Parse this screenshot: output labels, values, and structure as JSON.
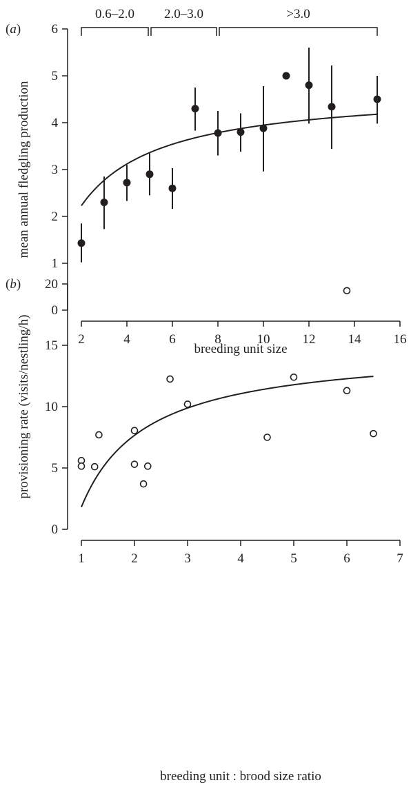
{
  "chart_data": [
    {
      "type": "scatter",
      "panel_label": "a",
      "xlabel": "breeding unit size",
      "ylabel": "mean annual fledgling production",
      "xlim": [
        2,
        16
      ],
      "ylim": [
        0,
        6
      ],
      "xticks": [
        2,
        4,
        6,
        8,
        10,
        12,
        14,
        16
      ],
      "yticks": [
        0,
        1,
        2,
        3,
        4,
        5,
        6
      ],
      "grid": false,
      "points": [
        {
          "x": 2,
          "y": 1.43,
          "lo": 1.02,
          "hi": 1.85
        },
        {
          "x": 3,
          "y": 2.3,
          "lo": 1.73,
          "hi": 2.85
        },
        {
          "x": 4,
          "y": 2.72,
          "lo": 2.33,
          "hi": 3.1
        },
        {
          "x": 5,
          "y": 2.9,
          "lo": 2.45,
          "hi": 3.35
        },
        {
          "x": 6,
          "y": 2.6,
          "lo": 2.16,
          "hi": 3.03
        },
        {
          "x": 7,
          "y": 4.3,
          "lo": 3.83,
          "hi": 4.75
        },
        {
          "x": 8,
          "y": 3.78,
          "lo": 3.3,
          "hi": 4.25
        },
        {
          "x": 9,
          "y": 3.8,
          "lo": 3.38,
          "hi": 4.2
        },
        {
          "x": 10,
          "y": 3.88,
          "lo": 2.96,
          "hi": 4.78
        },
        {
          "x": 11,
          "y": 5.0,
          "lo": 5.0,
          "hi": 5.0
        },
        {
          "x": 12,
          "y": 4.8,
          "lo": 3.98,
          "hi": 5.6
        },
        {
          "x": 13,
          "y": 4.34,
          "lo": 3.44,
          "hi": 5.22
        },
        {
          "x": 15,
          "y": 4.5,
          "lo": 3.98,
          "hi": 5.0
        }
      ],
      "fit_curve": {
        "x_range": [
          2,
          15
        ],
        "asymptote": 4.72,
        "half_saturation": 1.9,
        "x_offset": 0.3
      },
      "brackets": [
        {
          "label": "0.6–2.0",
          "x_start": 2,
          "x_end": 5
        },
        {
          "label": "2.0–3.0",
          "x_start": 5,
          "x_end": 8
        },
        {
          "label": ">3.0",
          "x_start": 8,
          "x_end": 15
        }
      ]
    },
    {
      "type": "scatter",
      "panel_label": "b",
      "xlabel": "breeding unit : brood size ratio",
      "ylabel": "provisioning rate (visits/nestling/h)",
      "xlim": [
        1,
        7
      ],
      "ylim": [
        0,
        20
      ],
      "xticks": [
        1,
        2,
        3,
        4,
        5,
        6,
        7
      ],
      "yticks": [
        0,
        5,
        10,
        15,
        20
      ],
      "grid": false,
      "points": [
        {
          "x": 1.0,
          "y": 5.6
        },
        {
          "x": 1.0,
          "y": 5.15
        },
        {
          "x": 1.25,
          "y": 5.1
        },
        {
          "x": 1.33,
          "y": 7.7
        },
        {
          "x": 2.0,
          "y": 8.05
        },
        {
          "x": 2.0,
          "y": 5.3
        },
        {
          "x": 2.17,
          "y": 3.7
        },
        {
          "x": 2.25,
          "y": 5.15
        },
        {
          "x": 2.67,
          "y": 12.25
        },
        {
          "x": 3.0,
          "y": 10.2
        },
        {
          "x": 4.5,
          "y": 7.5
        },
        {
          "x": 5.0,
          "y": 12.4
        },
        {
          "x": 6.0,
          "y": 19.45
        },
        {
          "x": 6.0,
          "y": 11.3
        },
        {
          "x": 6.5,
          "y": 7.8
        }
      ],
      "fit_curve": {
        "x_range": [
          1,
          6.5
        ],
        "asymptote": 14.85,
        "half_saturation": 1.08,
        "x_offset": 0.85
      }
    }
  ]
}
